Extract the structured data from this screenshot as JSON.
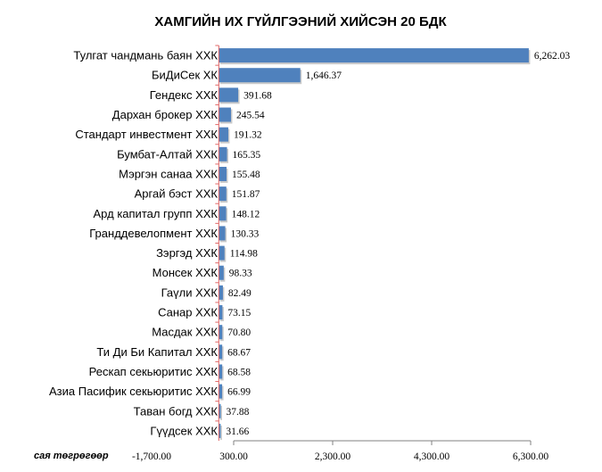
{
  "chart_data": {
    "type": "bar",
    "orientation": "horizontal",
    "title": "ХАМГИЙН ИХ ГҮЙЛГЭЭНИЙ ХИЙСЭН 20 БДК",
    "unit_label": "сая төгрөгөөр",
    "categories": [
      "Тулгат чандмань баян ХХК",
      "БиДиСек ХК",
      "Гендекс ХХК",
      "Дархан брокер ХХК",
      "Стандарт инвестмент ХХК",
      "Бумбат-Алтай ХХК",
      "Мэргэн санаа ХХК",
      "Аргай бэст ХХК",
      "Ард капитал групп ХХК",
      "Гранддевелопмент ХХК",
      "Зэргэд ХХК",
      "Монсек ХХК",
      "Гаүли ХХК",
      "Санар ХХК",
      "Масдак ХХК",
      "Ти Ди Би Капитал ХХК",
      "Рескап секьюритис ХХК",
      "Азиа Пасифик секьюритис ХХК",
      "Таван богд ХХК",
      "Гүүдсек ХХК"
    ],
    "values": [
      6262.03,
      1646.37,
      391.68,
      245.54,
      191.32,
      165.35,
      155.48,
      151.87,
      148.12,
      130.33,
      114.98,
      98.33,
      82.49,
      73.15,
      70.8,
      68.67,
      68.58,
      66.99,
      37.88,
      31.66
    ],
    "value_labels": [
      "6,262.03",
      "1,646.37",
      "391.68",
      "245.54",
      "191.32",
      "165.35",
      "155.48",
      "151.87",
      "148.12",
      "130.33",
      "114.98",
      "98.33",
      "82.49",
      "73.15",
      "70.80",
      "68.67",
      "68.58",
      "66.99",
      "37.88",
      "31.66"
    ],
    "x_ticks": [
      -1700,
      300,
      2300,
      4300,
      6300
    ],
    "x_tick_labels": [
      "-1,700.00",
      "300.00",
      "2,300.00",
      "4,300.00",
      "6,300.00"
    ],
    "xlim": [
      -1700,
      6300
    ],
    "grid": false,
    "legend": "none",
    "colors": {
      "bar": "#4f81bd",
      "bar_shadow": "#b4b4b4",
      "axis": "#808080",
      "zero_line": "#e06666"
    }
  }
}
